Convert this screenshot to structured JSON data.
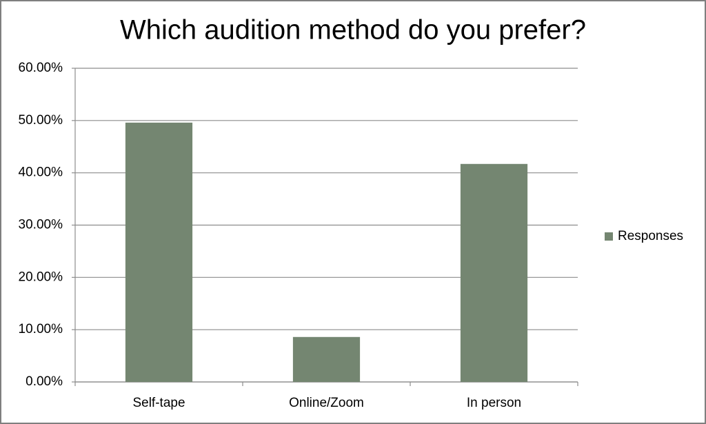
{
  "chart_data": {
    "type": "bar",
    "title": "Which audition method do you prefer?",
    "categories": [
      "Self-tape",
      "Online/Zoom",
      "In person"
    ],
    "series": [
      {
        "name": "Responses",
        "color": "#748671",
        "values": [
          49.6,
          8.6,
          41.7
        ]
      }
    ],
    "ylim": [
      0,
      60
    ],
    "yticks": [
      {
        "value": 0,
        "label": "0.00%"
      },
      {
        "value": 10,
        "label": "10.00%"
      },
      {
        "value": 20,
        "label": "20.00%"
      },
      {
        "value": 30,
        "label": "30.00%"
      },
      {
        "value": 40,
        "label": "40.00%"
      },
      {
        "value": 50,
        "label": "50.00%"
      },
      {
        "value": 60,
        "label": "60.00%"
      }
    ],
    "grid": true,
    "legend": "right"
  }
}
